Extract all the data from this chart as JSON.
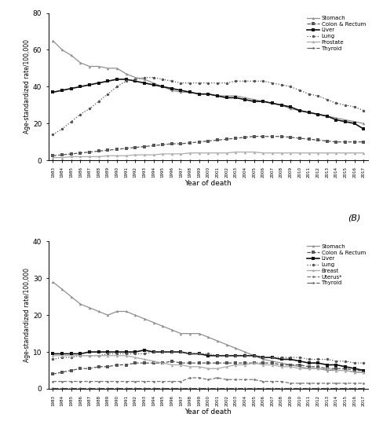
{
  "years": [
    1983,
    1984,
    1985,
    1986,
    1987,
    1988,
    1989,
    1990,
    1991,
    1992,
    1993,
    1994,
    1995,
    1996,
    1997,
    1998,
    1999,
    2000,
    2001,
    2002,
    2003,
    2004,
    2005,
    2006,
    2007,
    2008,
    2009,
    2010,
    2011,
    2012,
    2013,
    2014,
    2015,
    2016,
    2017
  ],
  "male": {
    "Stomach": [
      65,
      60,
      57,
      53,
      51,
      51,
      50,
      50,
      47,
      45,
      44,
      42,
      40,
      38,
      37,
      37,
      36,
      36,
      35,
      35,
      35,
      34,
      33,
      32,
      31,
      30,
      28,
      27,
      26,
      25,
      24,
      23,
      22,
      21,
      20
    ],
    "Colon_Rectum": [
      2.5,
      3,
      3.5,
      4,
      4.5,
      5,
      5.5,
      6,
      6.5,
      7,
      7.5,
      8,
      8.5,
      9,
      9,
      9.5,
      10,
      10.5,
      11,
      11.5,
      12,
      12.5,
      13,
      13,
      13,
      13,
      12.5,
      12,
      11.5,
      11,
      10.5,
      10,
      10,
      10,
      10
    ],
    "Liver": [
      37,
      38,
      39,
      40,
      41,
      42,
      43,
      44,
      44,
      43,
      42,
      41,
      40,
      39,
      38,
      37,
      36,
      36,
      35,
      34,
      34,
      33,
      32,
      32,
      31,
      30,
      29,
      27,
      26,
      25,
      24,
      22,
      21,
      20,
      17
    ],
    "Lung": [
      14,
      17,
      21,
      25,
      28,
      32,
      36,
      40,
      43,
      44,
      45,
      45,
      44,
      43,
      42,
      42,
      42,
      42,
      42,
      42,
      43,
      43,
      43,
      43,
      42,
      41,
      40,
      38,
      36,
      35,
      33,
      31,
      30,
      29,
      27
    ],
    "Prostate": [
      1.5,
      1.5,
      2,
      2,
      2,
      2,
      2.5,
      2.5,
      2.5,
      3,
      3,
      3,
      3.5,
      3.5,
      3.5,
      4,
      4,
      4,
      4,
      4,
      4.5,
      4.5,
      4.5,
      4,
      4,
      4,
      4,
      4,
      4,
      4,
      4,
      4,
      4,
      4,
      4
    ],
    "Thyroid": [
      0.2,
      0.2,
      0.2,
      0.2,
      0.2,
      0.2,
      0.2,
      0.2,
      0.2,
      0.2,
      0.2,
      0.2,
      0.2,
      0.2,
      0.2,
      0.2,
      0.2,
      0.2,
      0.2,
      0.2,
      0.2,
      0.2,
      0.2,
      0.2,
      0.2,
      0.2,
      0.2,
      0.2,
      0.2,
      0.2,
      0.2,
      0.2,
      0.2,
      0.2,
      0.2
    ]
  },
  "female": {
    "Stomach": [
      29,
      27,
      25,
      23,
      22,
      21,
      20,
      21,
      21,
      20,
      19,
      18,
      17,
      16,
      15,
      15,
      15,
      14,
      13,
      12,
      11,
      10,
      9,
      8,
      7.5,
      7,
      6.5,
      6,
      5.5,
      5.5,
      5,
      5,
      5,
      4.5,
      4.5
    ],
    "Colon_Rectum": [
      4,
      4.5,
      5,
      5.5,
      5.5,
      6,
      6,
      6.5,
      6.5,
      7,
      7,
      7,
      7,
      7.5,
      7,
      7,
      7,
      7,
      7,
      7,
      7,
      7,
      7,
      7,
      7,
      6.5,
      6.5,
      6.5,
      6,
      6,
      5.5,
      5.5,
      5.5,
      5,
      5
    ],
    "Liver": [
      9.5,
      9.5,
      9.5,
      9.5,
      10,
      10,
      10,
      10,
      10,
      10,
      10.5,
      10,
      10,
      10,
      10,
      9.5,
      9.5,
      9,
      9,
      9,
      9,
      9,
      9,
      8.5,
      8.5,
      8,
      8,
      7.5,
      7,
      7,
      6.5,
      6.5,
      6,
      5.5,
      5
    ],
    "Lung": [
      8,
      8.5,
      8.5,
      9,
      9,
      9,
      9.5,
      9.5,
      9.5,
      9.5,
      9.5,
      10,
      10,
      10,
      10,
      9.5,
      9.5,
      9.5,
      9,
      9,
      9,
      9,
      9,
      8.5,
      8.5,
      8.5,
      8.5,
      8.5,
      8,
      8,
      8,
      7.5,
      7.5,
      7,
      7
    ],
    "Breast": [
      9,
      9,
      9,
      9,
      9,
      9,
      9,
      9,
      9,
      8.5,
      8,
      7.5,
      7,
      6.5,
      6.5,
      6,
      6,
      5.5,
      5.5,
      6,
      6.5,
      6.5,
      7,
      6.5,
      6.5,
      6,
      6,
      5.5,
      5.5,
      5.5,
      5.5,
      5,
      5,
      4.5,
      4.5
    ],
    "Uterus": [
      2,
      2,
      2,
      2,
      2,
      2,
      2,
      2,
      2,
      2,
      2,
      2,
      2,
      2,
      2,
      3,
      3,
      2.5,
      3,
      2.5,
      2.5,
      2.5,
      2.5,
      2,
      2,
      2,
      1.5,
      1.5,
      1.5,
      1.5,
      1.5,
      1.5,
      1.5,
      1.5,
      1.5
    ],
    "Thyroid": [
      0.3,
      0.3,
      0.3,
      0.3,
      0.3,
      0.3,
      0.3,
      0.3,
      0.3,
      0.3,
      0.3,
      0.3,
      0.3,
      0.3,
      0.3,
      0.3,
      0.3,
      0.3,
      0.3,
      0.3,
      0.3,
      0.3,
      0.3,
      0.3,
      0.3,
      0.3,
      0.3,
      0.3,
      0.3,
      0.3,
      0.3,
      0.3,
      0.3,
      0.3,
      0.3
    ]
  },
  "xlabel": "Year of death",
  "ylabel": "Age-standardized rate/100,000",
  "male_ylim": [
    0,
    80
  ],
  "male_yticks": [
    0,
    20,
    40,
    60,
    80
  ],
  "female_ylim": [
    0,
    40
  ],
  "female_yticks": [
    0,
    10,
    20,
    30,
    40
  ]
}
